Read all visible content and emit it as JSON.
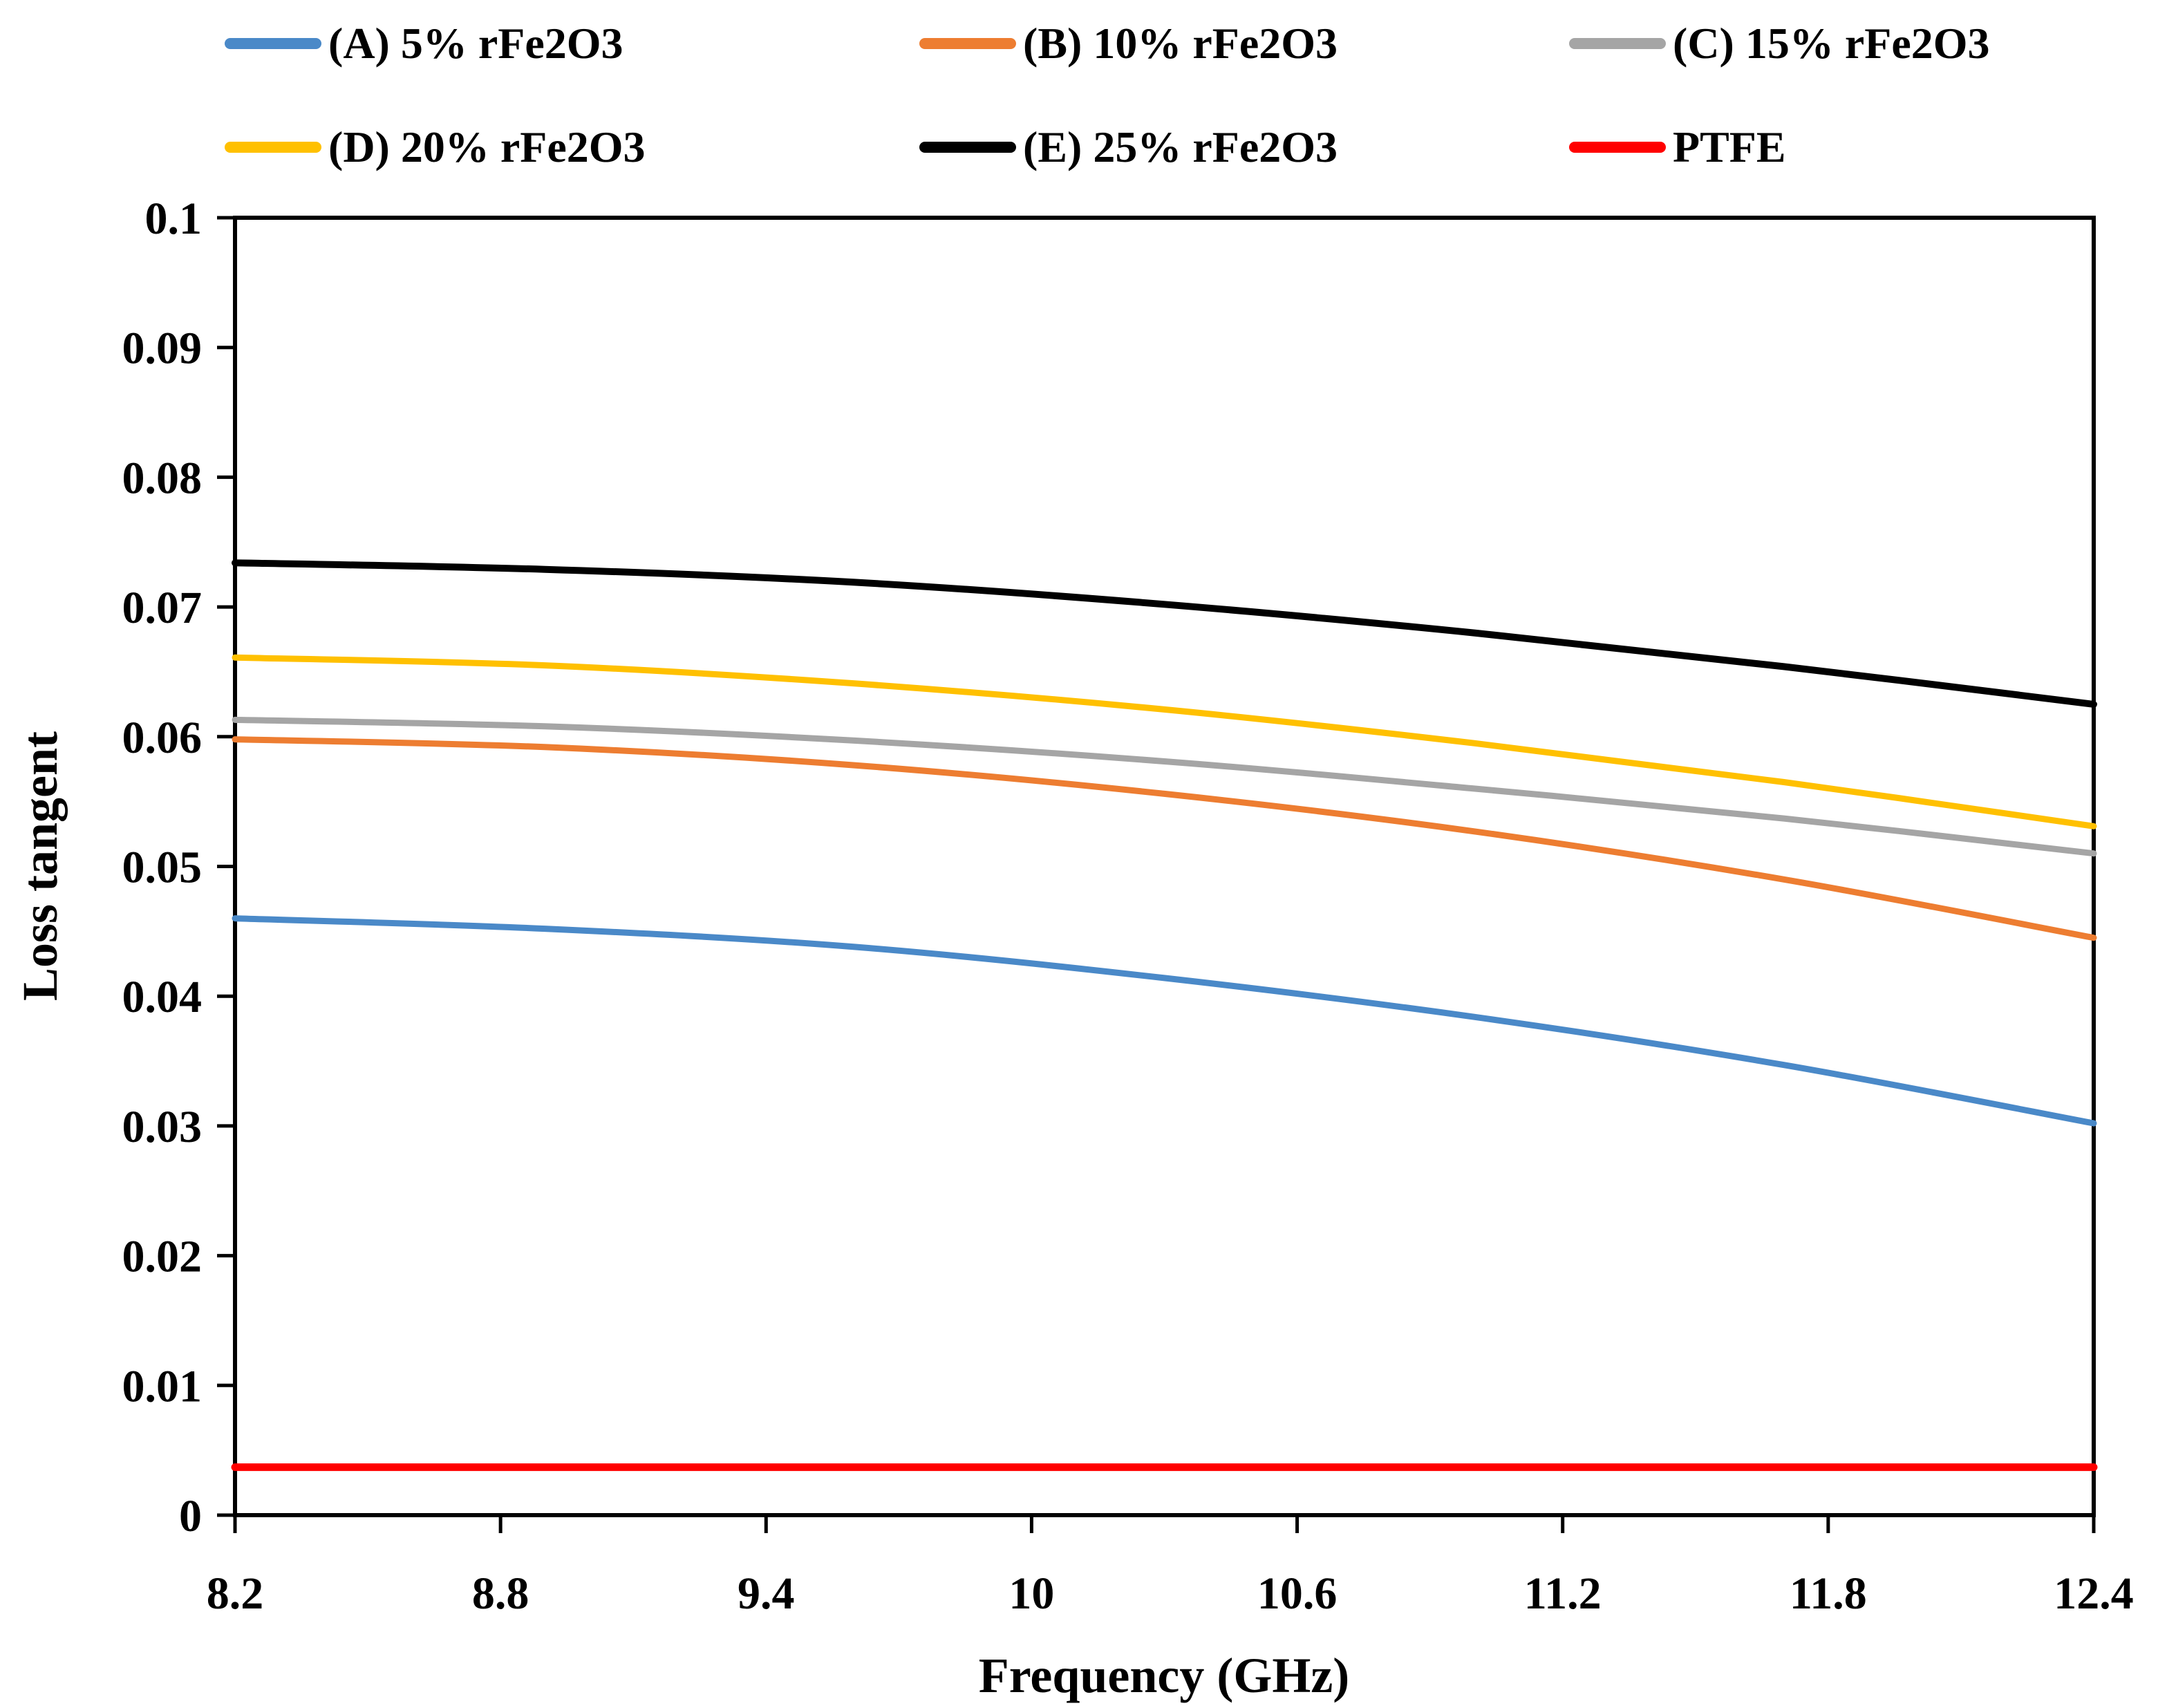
{
  "chart_data": {
    "type": "line",
    "title": "",
    "xlabel": "Frequency (GHz)",
    "ylabel": "Loss tangent",
    "xlim": [
      8.2,
      12.4
    ],
    "ylim": [
      0,
      0.1
    ],
    "grid": false,
    "legend_position": "top",
    "frame_color": "#000000",
    "background_color": "#ffffff",
    "x_tick_labels": [
      "8.2",
      "8.8",
      "9.4",
      "10",
      "10.6",
      "11.2",
      "11.8",
      "12.4"
    ],
    "x_ticks": [
      8.2,
      8.8,
      9.4,
      10,
      10.6,
      11.2,
      11.8,
      12.4
    ],
    "y_tick_labels": [
      "0",
      "0.01",
      "0.02",
      "0.03",
      "0.04",
      "0.05",
      "0.06",
      "0.07",
      "0.08",
      "0.09",
      "0.1"
    ],
    "y_ticks": [
      0,
      0.01,
      0.02,
      0.03,
      0.04,
      0.05,
      0.06,
      0.07,
      0.08,
      0.09,
      0.1
    ],
    "x": [
      8.2,
      8.9,
      9.6,
      10.3,
      11.0,
      11.7,
      12.4
    ],
    "series": [
      {
        "name": "(A) 5% rFe2O3",
        "color": "#4A89C8",
        "line_width": 9,
        "values": [
          0.046,
          0.0452,
          0.0438,
          0.0414,
          0.0384,
          0.0347,
          0.0302
        ]
      },
      {
        "name": "(B) 10% rFe2O3",
        "color": "#ED7D31",
        "line_width": 9,
        "values": [
          0.0598,
          0.0592,
          0.0578,
          0.0556,
          0.0527,
          0.049,
          0.0445
        ]
      },
      {
        "name": "(C) 15% rFe2O3",
        "color": "#A5A5A5",
        "line_width": 9,
        "values": [
          0.0613,
          0.0608,
          0.0597,
          0.0581,
          0.056,
          0.0537,
          0.051
        ]
      },
      {
        "name": "(D) 20% rFe2O3",
        "color": "#FFC000",
        "line_width": 9,
        "values": [
          0.0661,
          0.0655,
          0.0641,
          0.0621,
          0.0595,
          0.0565,
          0.0531
        ]
      },
      {
        "name": "(E) 25% rFe2O3",
        "color": "#000000",
        "line_width": 10,
        "values": [
          0.0734,
          0.0729,
          0.0719,
          0.0702,
          0.068,
          0.0654,
          0.0625
        ]
      },
      {
        "name": "PTFE",
        "color": "#FF0000",
        "line_width": 11,
        "values": [
          0.0037,
          0.0037,
          0.0037,
          0.0037,
          0.0037,
          0.0037,
          0.0037
        ]
      }
    ]
  }
}
